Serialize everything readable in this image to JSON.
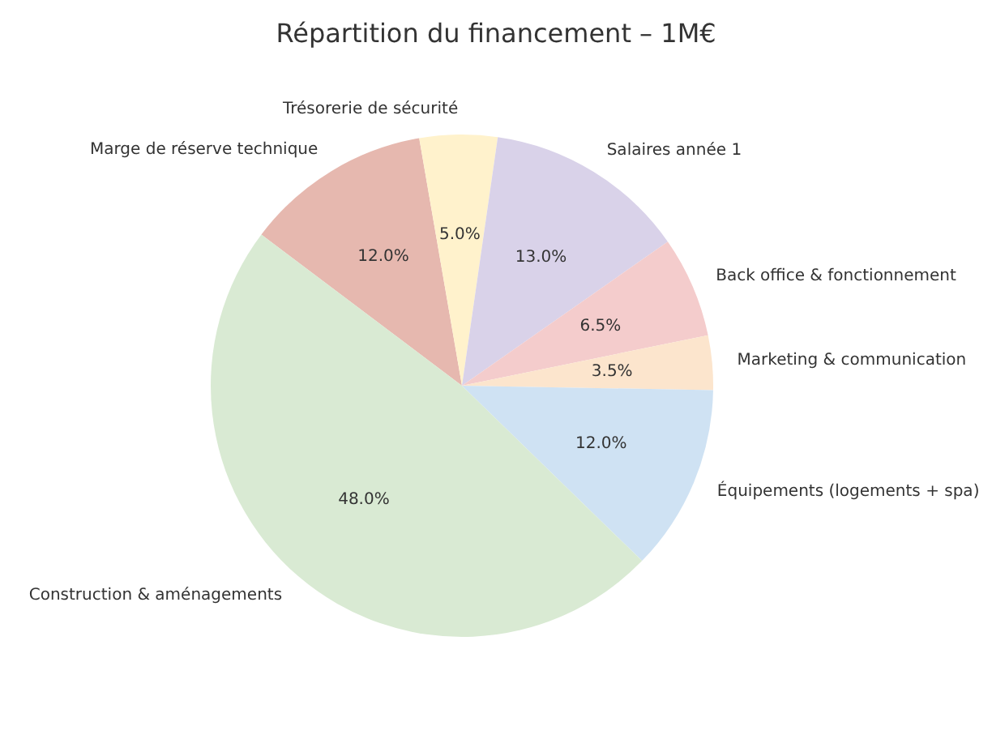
{
  "chart_data": {
    "type": "pie",
    "title": "Répartition du financement – 1M€",
    "categories": [
      "Marge de réserve technique",
      "Trésorerie de sécurité",
      "Salaires année 1",
      "Back office & fonctionnement",
      "Marketing & communication",
      "Équipements (logements + spa)",
      "Construction & aménagements"
    ],
    "values": [
      12,
      5,
      13,
      6.5,
      3.5,
      12,
      48
    ],
    "value_labels": [
      "12.0%",
      "5.0%",
      "13.0%",
      "6.5%",
      "3.5%",
      "12.0%",
      "48.0%"
    ],
    "colors": [
      "#e6b8af",
      "#fff2cc",
      "#d9d2e9",
      "#f4cccc",
      "#fce5cd",
      "#cfe2f3",
      "#d9ead3"
    ],
    "legend": false
  }
}
